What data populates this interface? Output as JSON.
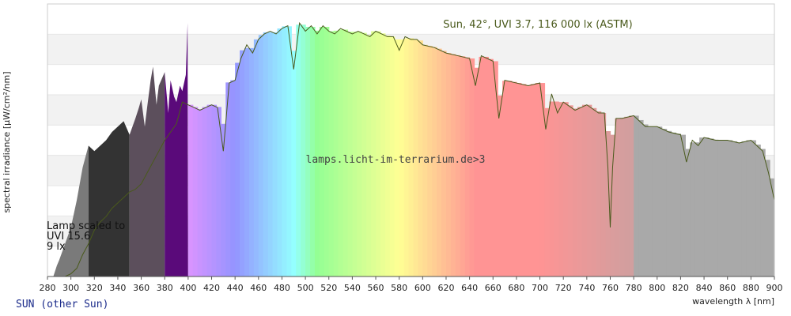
{
  "chart_data": {
    "type": "area",
    "title": "",
    "xlabel": "wavelength λ [nm]",
    "ylabel": "spectral irradiance [µW/cm²/nm]",
    "xlim": [
      280,
      900
    ],
    "ylim": [
      0,
      100
    ],
    "x_ticks": [
      280,
      300,
      320,
      340,
      360,
      380,
      400,
      420,
      440,
      460,
      480,
      500,
      520,
      540,
      560,
      580,
      600,
      620,
      640,
      660,
      680,
      700,
      720,
      740,
      760,
      780,
      800,
      820,
      840,
      860,
      880,
      900
    ],
    "grid": "horizontal bands",
    "annotations": {
      "sun": "Sun, 42°, UVI 3.7, 116 000 lx (ASTM)",
      "watermark": "lamps.licht-im-terrarium.de>3",
      "lamp_line1": "Lamp scaled to",
      "lamp_line2": "UVI 15.6",
      "lamp_line3": "9 lx"
    },
    "footer": "SUN (other Sun)",
    "colors": {
      "sun_line": "#4a5a1c",
      "lamp_fill_uvb": "#333333",
      "lamp_fill_uva": "#5c4f5c",
      "lamp_fill_violet": "#5a0a7a",
      "lamp_fill_ir": "#a9a9a9"
    },
    "series": [
      {
        "name": "Sun, 42°, UVI 3.7, 116 000 lx (ASTM)",
        "x": [
          295,
          300,
          305,
          310,
          315,
          320,
          325,
          330,
          335,
          340,
          345,
          350,
          355,
          360,
          365,
          370,
          375,
          380,
          385,
          390,
          395,
          400,
          405,
          410,
          415,
          420,
          425,
          430,
          435,
          440,
          445,
          450,
          455,
          460,
          465,
          470,
          475,
          480,
          485,
          490,
          495,
          500,
          505,
          510,
          515,
          520,
          525,
          530,
          535,
          540,
          545,
          550,
          555,
          560,
          565,
          570,
          575,
          580,
          585,
          590,
          595,
          600,
          610,
          620,
          630,
          640,
          645,
          650,
          655,
          660,
          665,
          670,
          680,
          690,
          700,
          705,
          710,
          715,
          720,
          730,
          740,
          750,
          755,
          758,
          760,
          762,
          765,
          770,
          780,
          790,
          800,
          810,
          820,
          825,
          830,
          835,
          840,
          850,
          860,
          870,
          880,
          890,
          895,
          900
        ],
        "y": [
          0,
          1,
          3,
          8,
          12,
          17,
          20,
          22,
          25,
          27,
          29,
          31,
          32,
          34,
          38,
          42,
          46,
          50,
          53,
          56,
          64,
          63,
          62,
          61,
          62,
          63,
          62,
          46,
          71,
          72,
          80,
          85,
          82,
          87,
          89,
          90,
          89,
          91,
          92,
          76,
          93,
          90,
          92,
          89,
          92,
          90,
          89,
          91,
          90,
          89,
          90,
          89,
          88,
          90,
          89,
          88,
          88,
          83,
          88,
          87,
          87,
          85,
          84,
          82,
          81,
          80,
          70,
          81,
          80,
          79,
          58,
          72,
          71,
          70,
          71,
          54,
          67,
          60,
          64,
          61,
          63,
          60,
          60,
          40,
          18,
          40,
          58,
          58,
          59,
          55,
          55,
          53,
          52,
          42,
          50,
          48,
          51,
          50,
          50,
          49,
          50,
          46,
          38,
          28
        ]
      },
      {
        "name": "Lamp scaled to UVI 15.6",
        "x": [
          285,
          288,
          290,
          295,
          300,
          305,
          310,
          315,
          320,
          325,
          330,
          335,
          340,
          345,
          350,
          355,
          358,
          360,
          363,
          365,
          368,
          370,
          373,
          375,
          378,
          380,
          383,
          385,
          388,
          390,
          393,
          395,
          398,
          399.5,
          400
        ],
        "y": [
          0,
          4,
          6,
          12,
          18,
          28,
          40,
          48,
          46,
          48,
          50,
          53,
          55,
          57,
          52,
          58,
          62,
          65,
          55,
          62,
          72,
          77,
          63,
          70,
          73,
          75,
          60,
          72,
          66,
          64,
          70,
          68,
          74,
          93,
          0
        ]
      }
    ]
  }
}
